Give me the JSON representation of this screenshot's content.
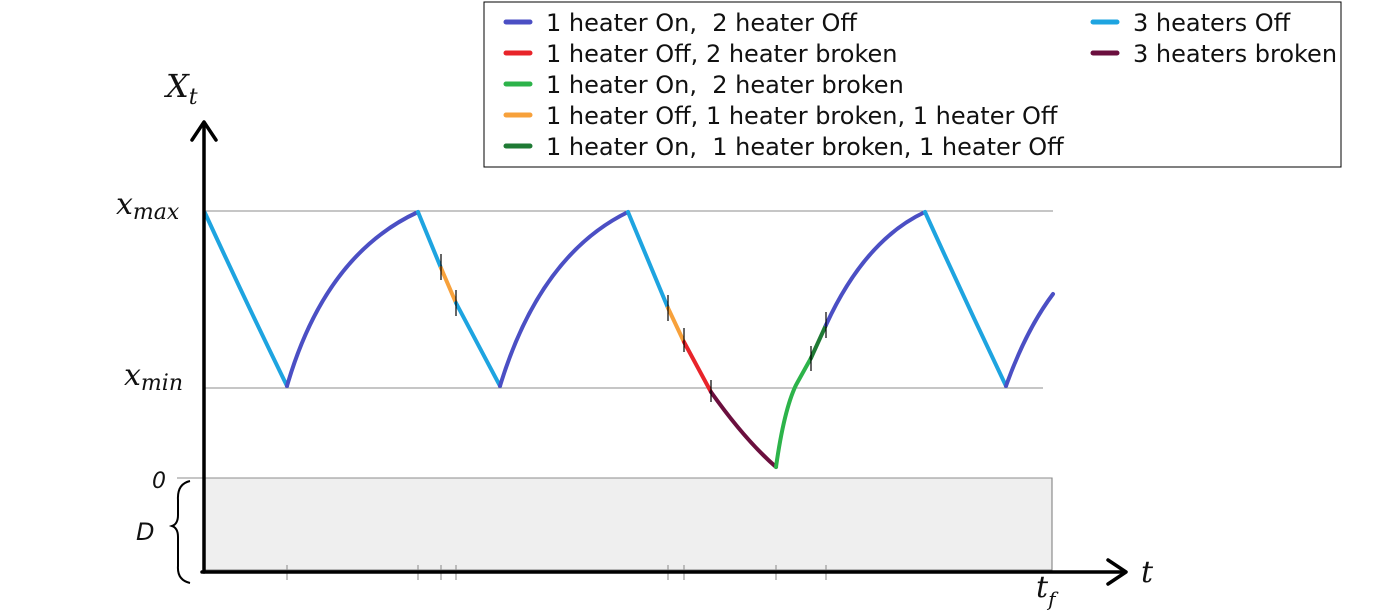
{
  "axes": {
    "y_label": "X",
    "y_label_sub": "t",
    "x_label": "t",
    "x_end_label": "t",
    "x_end_label_sub": "f",
    "level_max": "x",
    "level_max_sub": "max",
    "level_min": "x",
    "level_min_sub": "min",
    "zero_label": "0",
    "region_label": "D"
  },
  "legend": {
    "items": [
      {
        "label": "1 heater On,  2 heater Off",
        "color": "#4b4fc4"
      },
      {
        "label": "1 heater Off, 2 heater broken",
        "color": "#e8242a"
      },
      {
        "label": "1 heater On,  2 heater broken",
        "color": "#2db34a"
      },
      {
        "label": "1 heater Off, 1 heater broken, 1 heater Off",
        "color": "#f7a13b"
      },
      {
        "label": "1 heater On,  1 heater broken, 1 heater Off",
        "color": "#1f7a34"
      },
      {
        "label": "3 heaters Off",
        "color": "#1ea4e0"
      },
      {
        "label": "3 heaters broken",
        "color": "#6b0f3e"
      }
    ]
  },
  "colors": {
    "axis": "#000000",
    "gridline": "#8c8c8c",
    "region_fill": "#efefef"
  }
}
